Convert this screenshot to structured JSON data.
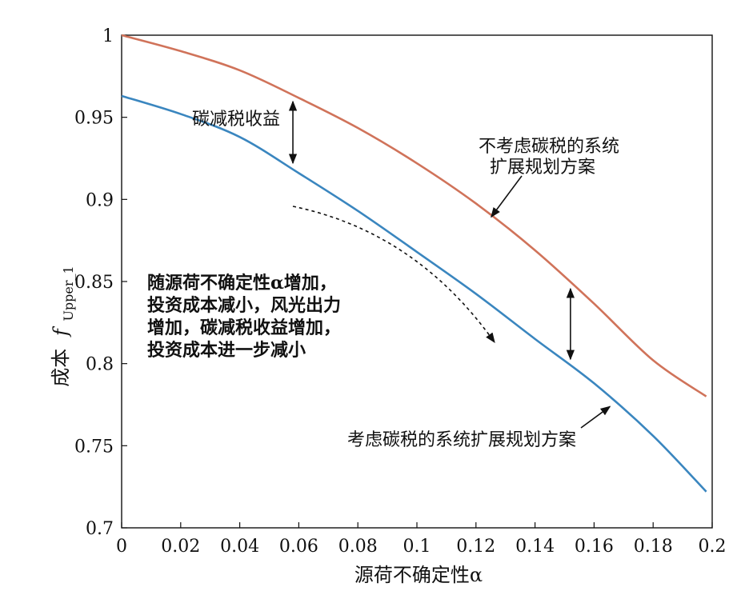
{
  "chart_data": {
    "type": "line",
    "xlabel": "源荷不确定性α",
    "ylabel_main": "成本",
    "ylabel_symbol": "f",
    "ylabel_subscript": "Upper_1",
    "xlim": [
      0,
      0.2
    ],
    "ylim": [
      0.7,
      1.0
    ],
    "x_ticks": [
      0,
      0.02,
      0.04,
      0.06,
      0.08,
      0.1,
      0.12,
      0.14,
      0.16,
      0.18,
      0.2
    ],
    "x_tick_labels": [
      "0",
      "0.02",
      "0.04",
      "0.06",
      "0.08",
      "0.1",
      "0.12",
      "0.14",
      "0.16",
      "0.18",
      "0.2"
    ],
    "y_ticks": [
      0.7,
      0.75,
      0.8,
      0.85,
      0.9,
      0.95,
      1.0
    ],
    "y_tick_labels": [
      "0.7",
      "0.75",
      "0.8",
      "0.85",
      "0.9",
      "0.95",
      "1"
    ],
    "grid": false,
    "series": [
      {
        "name": "不考虑碳税的系统扩展规划方案",
        "color": "#d0735a",
        "x": [
          0,
          0.02,
          0.04,
          0.06,
          0.08,
          0.1,
          0.12,
          0.14,
          0.16,
          0.18,
          0.198
        ],
        "y": [
          1.0,
          0.9903,
          0.9786,
          0.9618,
          0.9435,
          0.922,
          0.8975,
          0.869,
          0.8365,
          0.802,
          0.78
        ]
      },
      {
        "name": "考虑碳税的系统扩展规划方案",
        "color": "#3a86bf",
        "x": [
          0,
          0.02,
          0.04,
          0.06,
          0.08,
          0.1,
          0.12,
          0.14,
          0.16,
          0.18,
          0.198
        ],
        "y": [
          0.963,
          0.952,
          0.938,
          0.916,
          0.893,
          0.868,
          0.8425,
          0.815,
          0.788,
          0.756,
          0.722
        ]
      }
    ],
    "annotations": {
      "carbon_benefit": "碳减税收益",
      "no_tax_label_line1": "不考虑碳税的系统",
      "no_tax_label_line2": "扩展规划方案",
      "tax_label": "考虑碳税的系统扩展规划方案",
      "note_line1": "随源荷不确定性α增加，",
      "note_line2": "投资成本减小，风光出力",
      "note_line3": "增加，碳减税收益增加，",
      "note_line4": "投资成本进一步减小"
    }
  }
}
